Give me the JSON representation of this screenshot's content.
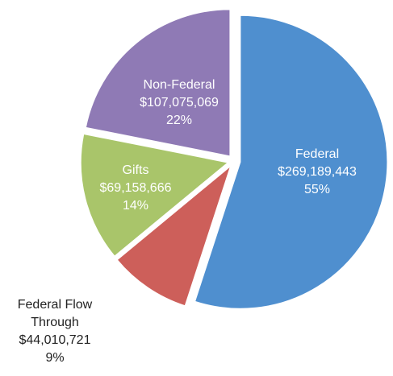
{
  "chart_data": {
    "type": "pie",
    "categories": [
      "Federal",
      "Federal Flow Through",
      "Gifts",
      "Non-Federal"
    ],
    "values": [
      269189443,
      44010721,
      69158666,
      107075069
    ],
    "value_labels": [
      "$269,189,443",
      "$44,010,721",
      "$69,158,666",
      "$107,075,069"
    ],
    "percent_labels": [
      "55%",
      "9%",
      "14%",
      "22%"
    ],
    "colors": [
      "#4f8fcf",
      "#cd5f5a",
      "#a9c56a",
      "#8f7ab5"
    ]
  }
}
